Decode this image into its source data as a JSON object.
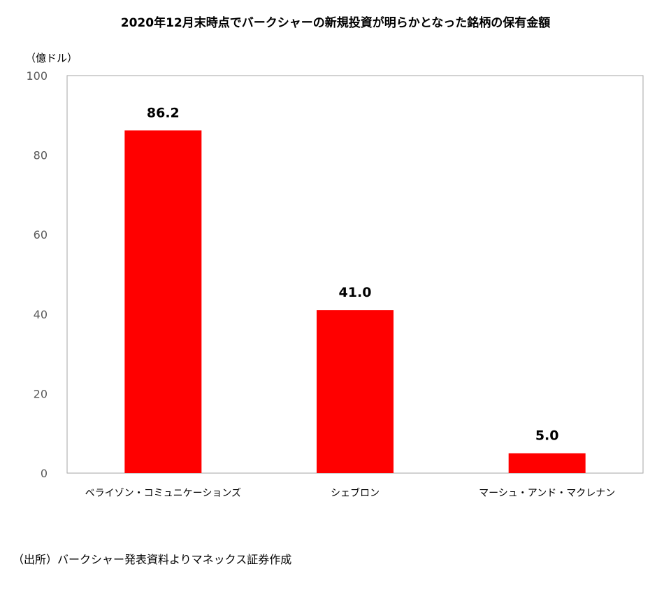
{
  "title": "2020年12月末時点でバークシャーの新規投資が明らかとなった銘柄の保有金額",
  "unit_label": "（億ドル）",
  "source_note": "（出所）バークシャー発表資料よりマネックス証券作成",
  "colors": {
    "bar": "#ff0000",
    "frame": "#a6a6a6",
    "tick_text": "#595959"
  },
  "chart_data": {
    "type": "bar",
    "categories": [
      "ベライゾン・コミュニケーションズ",
      "シェブロン",
      "マーシュ・アンド・マクレナン"
    ],
    "values": [
      86.2,
      41.0,
      5.0
    ],
    "value_labels": [
      "86.2",
      "41.0",
      "5.0"
    ],
    "ylabel": "（億ドル）",
    "ylim": [
      0,
      100
    ],
    "yticks": [
      0,
      20,
      40,
      60,
      80,
      100
    ],
    "grid": false,
    "legend": "none"
  }
}
